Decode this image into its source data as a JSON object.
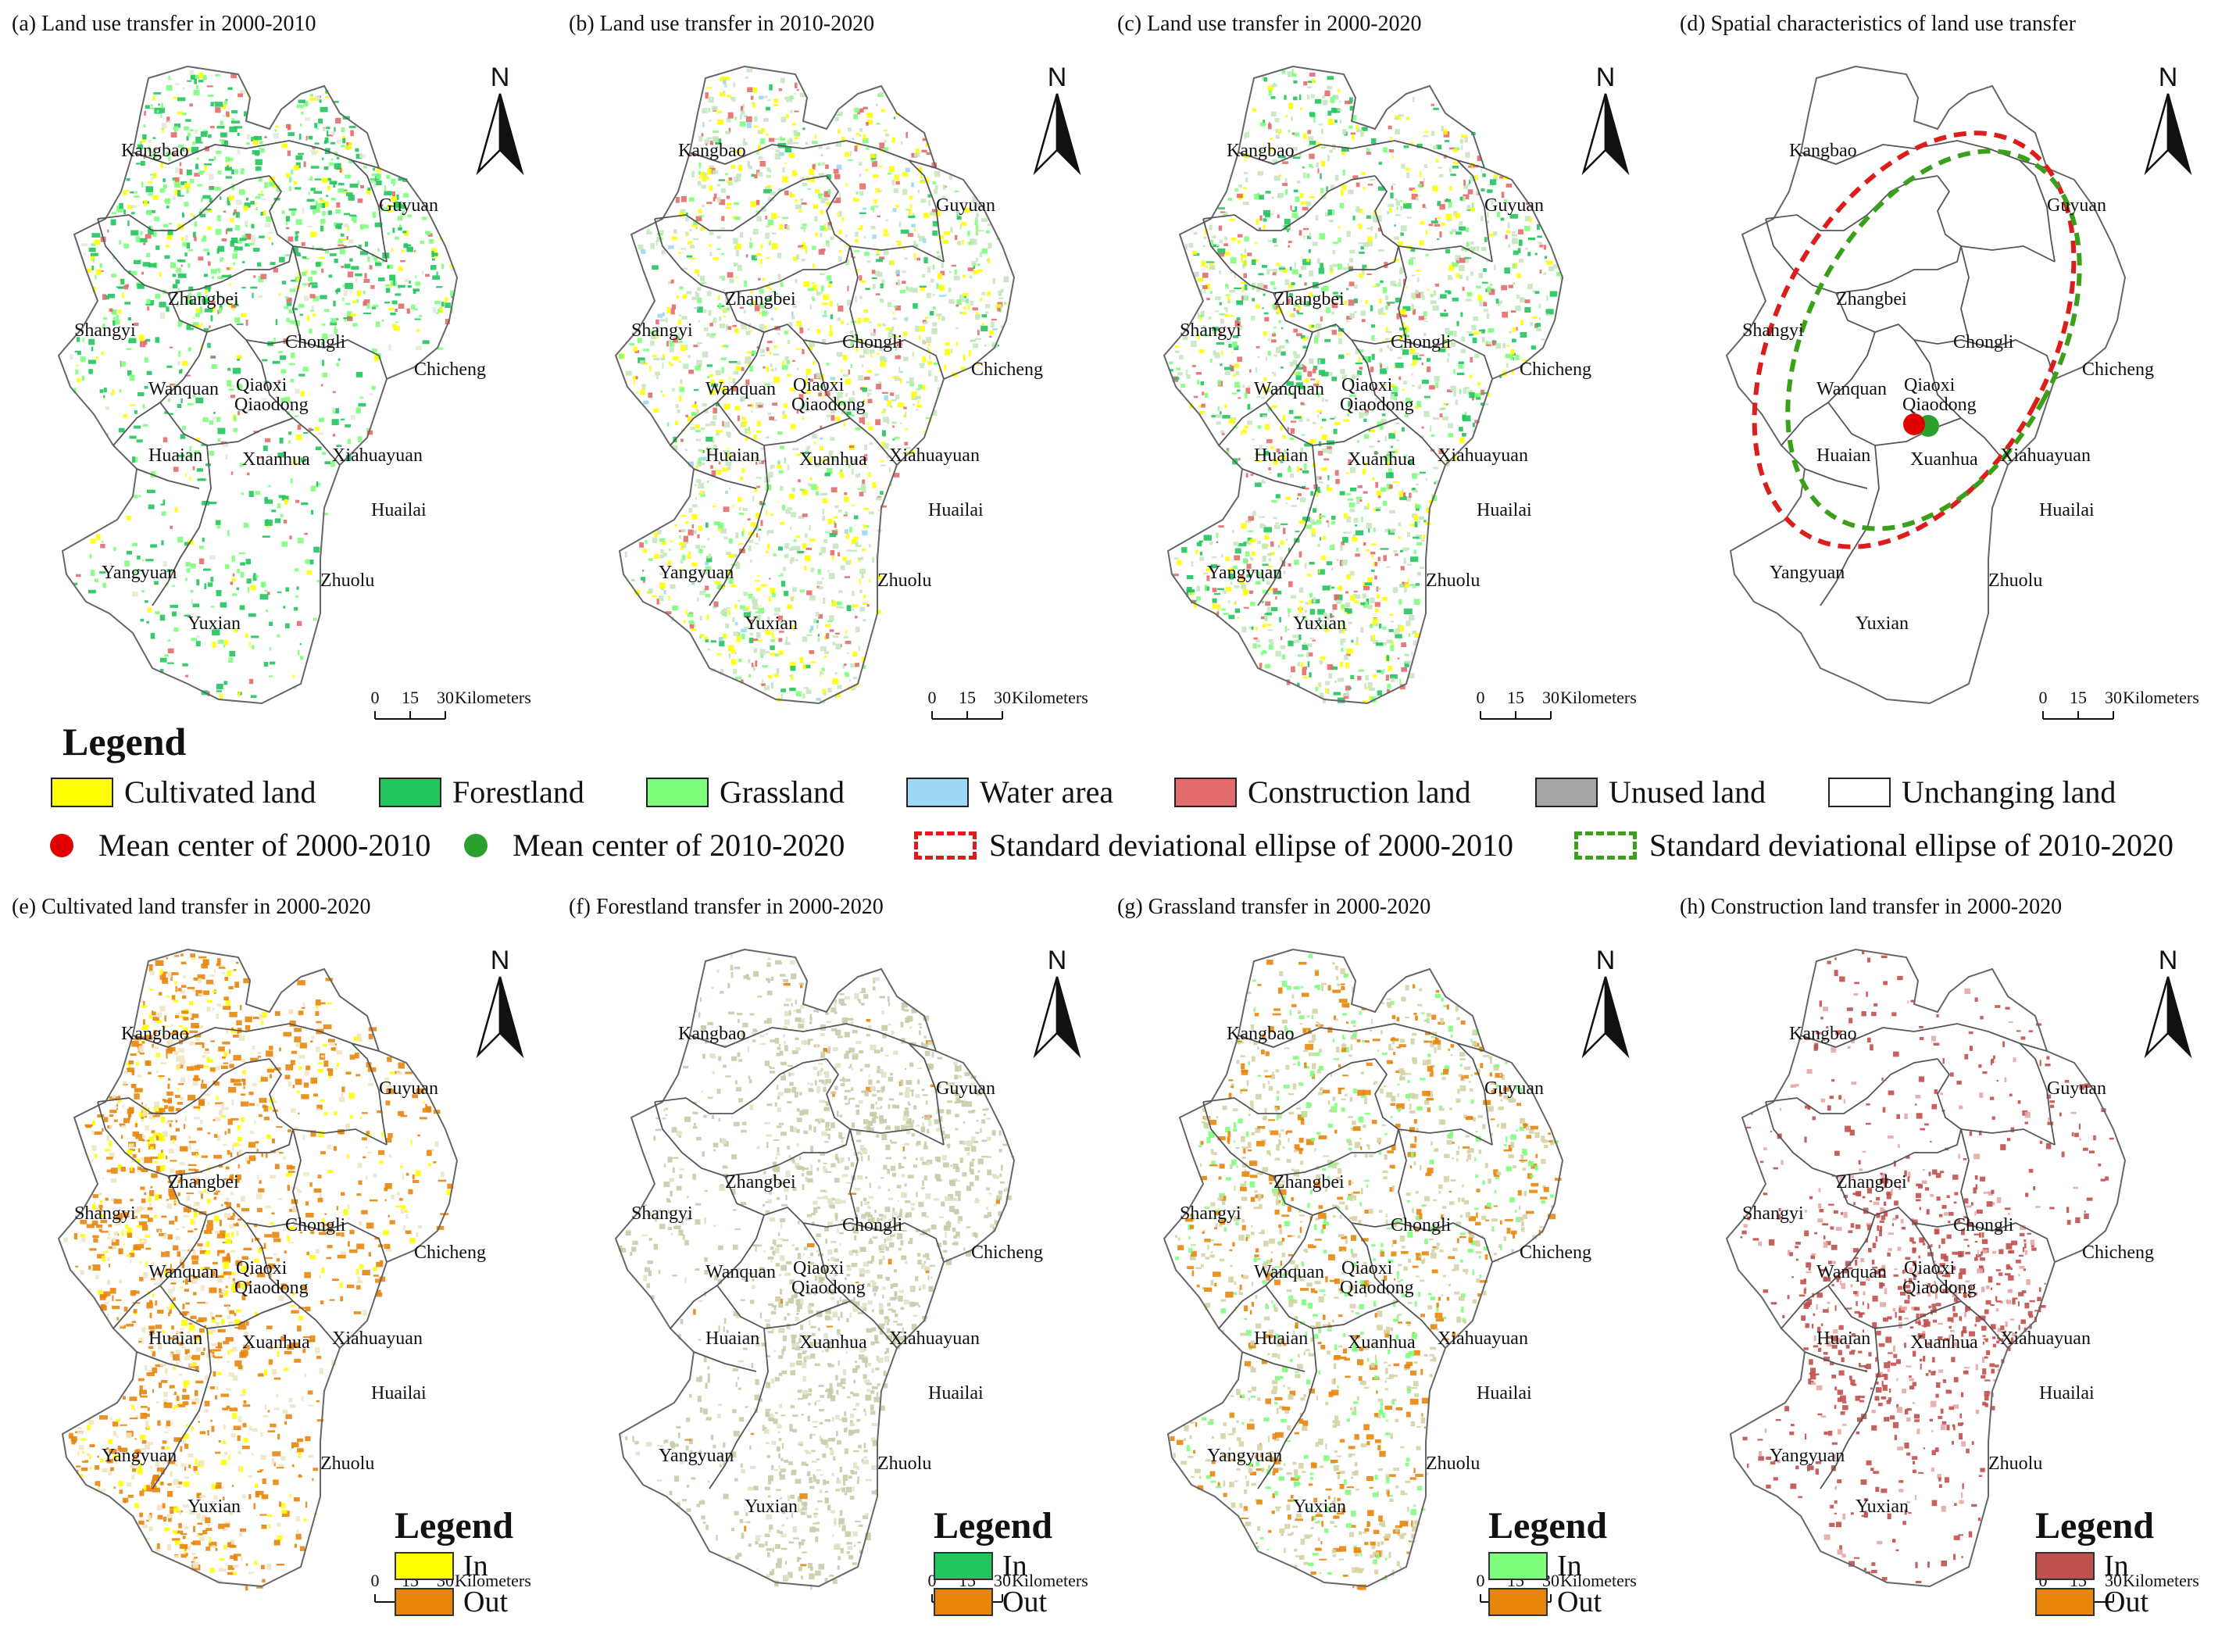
{
  "panels": [
    {
      "id": "a",
      "title": "(a) Land use transfer in 2000-2010",
      "scheme": "mixed"
    },
    {
      "id": "b",
      "title": "(b) Land use transfer in 2010-2020",
      "scheme": "mixed2"
    },
    {
      "id": "c",
      "title": "(c) Land use transfer in 2000-2020",
      "scheme": "mixed3"
    },
    {
      "id": "d",
      "title": "(d) Spatial characteristics of land use transfer",
      "scheme": "outline"
    },
    {
      "id": "e",
      "title": "(e) Cultivated land transfer in 2000-2020",
      "scheme": "cultivated"
    },
    {
      "id": "f",
      "title": "(f) Forestland transfer in 2000-2020",
      "scheme": "forest"
    },
    {
      "id": "g",
      "title": "(g) Grassland transfer in 2000-2020",
      "scheme": "grass"
    },
    {
      "id": "h",
      "title": "(h) Construction land transfer in 2000-2020",
      "scheme": "construction"
    }
  ],
  "districts": [
    "Kangbao",
    "Guyuan",
    "Zhangbei",
    "Shangyi",
    "Chongli",
    "Chicheng",
    "Wanquan",
    "Qiaoxi",
    "Qiaodong",
    "Huaian",
    "Xuanhua",
    "Xiahuayuan",
    "Huailai",
    "Yangyuan",
    "Zhuolu",
    "Yuxian"
  ],
  "north_label": "N",
  "scale_bar": {
    "ticks": [
      "0",
      "15",
      "30"
    ],
    "unit": "Kilometers"
  },
  "legend": {
    "title": "Legend",
    "items": [
      {
        "label": "Cultivated land",
        "color": "#ffff00"
      },
      {
        "label": "Forestland",
        "color": "#22c55e"
      },
      {
        "label": "Grassland",
        "color": "#7dff7d"
      },
      {
        "label": "Water area",
        "color": "#9fd8f5"
      },
      {
        "label": "Construction land",
        "color": "#e46b6b"
      },
      {
        "label": "Unused land",
        "color": "#a6a6a6"
      },
      {
        "label": "Unchanging land",
        "color": "#ffffff"
      }
    ],
    "centers": [
      {
        "label": "Mean center of 2000-2010",
        "color": "#e00000"
      },
      {
        "label": "Mean center of 2010-2020",
        "color": "#2ca02c"
      }
    ],
    "ellipses": [
      {
        "label": "Standard deviational ellipse of 2000-2010",
        "color": "#dd1c1c"
      },
      {
        "label": "Standard deviational ellipse of 2010-2020",
        "color": "#3aa01a"
      }
    ]
  },
  "mini_legends": [
    {
      "panel": "e",
      "title": "Legend",
      "in_label": "In",
      "out_label": "Out",
      "in_color": "#ffff00",
      "out_color": "#e8860c"
    },
    {
      "panel": "f",
      "title": "Legend",
      "in_label": "In",
      "out_label": "Out",
      "in_color": "#22c55e",
      "out_color": "#e8860c"
    },
    {
      "panel": "g",
      "title": "Legend",
      "in_label": "In",
      "out_label": "Out",
      "in_color": "#7dff7d",
      "out_color": "#e8860c"
    },
    {
      "panel": "h",
      "title": "Legend",
      "in_label": "In",
      "out_label": "Out",
      "in_color": "#c0504d",
      "out_color": "#e8860c"
    }
  ]
}
